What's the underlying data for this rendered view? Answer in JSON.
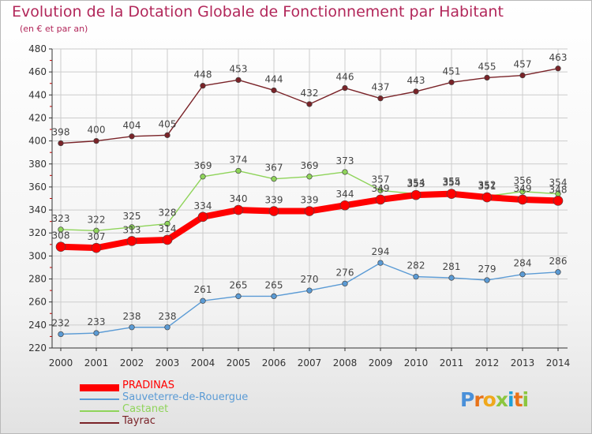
{
  "header": {
    "title": "Evolution de la Dotation Globale de Fonctionnement par Habitant",
    "subtitle": "(en € et par an)"
  },
  "colors": {
    "title": "#b2275a",
    "axis": "#333333",
    "grid": "#cccccc",
    "tick_minor": "#cc0000"
  },
  "chart_data": {
    "type": "line",
    "title": "Evolution de la Dotation Globale de Fonctionnement par Habitant",
    "subtitle": "(en € et par an)",
    "xlabel": "",
    "ylabel": "",
    "x": [
      2000,
      2001,
      2002,
      2003,
      2004,
      2005,
      2006,
      2007,
      2008,
      2009,
      2010,
      2011,
      2012,
      2013,
      2014
    ],
    "ylim": [
      220,
      480
    ],
    "yticks": [
      220,
      240,
      260,
      280,
      300,
      320,
      340,
      360,
      380,
      400,
      420,
      440,
      460,
      480
    ],
    "grid": true,
    "legend_position": "bottom-left",
    "series": [
      {
        "name": "PRADINAS",
        "color": "#ff0000",
        "values": [
          308,
          307,
          313,
          314,
          334,
          340,
          339,
          339,
          344,
          349,
          353,
          354,
          351,
          349,
          348
        ],
        "labels": [
          "308",
          "307",
          "313",
          "314",
          "334",
          "340",
          "339",
          "339",
          "344",
          "349",
          "353",
          "354",
          "351",
          "349",
          "348"
        ],
        "thick": true
      },
      {
        "name": "Sauveterre-de-Rouergue",
        "color": "#5b9bd5",
        "values": [
          232,
          233,
          238,
          238,
          261,
          265,
          265,
          270,
          276,
          294,
          282,
          281,
          279,
          284,
          286
        ],
        "labels": [
          "232",
          "233",
          "238",
          "238",
          "261",
          "265",
          "265",
          "270",
          "276",
          "294",
          "282",
          "281",
          "279",
          "284",
          "286"
        ]
      },
      {
        "name": "Castanet",
        "color": "#8fd45a",
        "values": [
          323,
          322,
          325,
          328,
          369,
          374,
          367,
          369,
          373,
          357,
          354,
          355,
          352,
          356,
          354
        ],
        "labels": [
          "323",
          "322",
          "325",
          "328",
          "369",
          "374",
          "367",
          "369",
          "373",
          "357",
          "354",
          "355",
          "352",
          "356",
          "354"
        ]
      },
      {
        "name": "Tayrac",
        "color": "#7a2328",
        "values": [
          398,
          400,
          404,
          405,
          448,
          453,
          444,
          432,
          446,
          437,
          443,
          451,
          455,
          457,
          463
        ],
        "labels": [
          "398",
          "400",
          "404",
          "405",
          "448",
          "453",
          "444",
          "432",
          "446",
          "437",
          "443",
          "451",
          "455",
          "457",
          "463"
        ]
      }
    ]
  },
  "legend": {
    "items": [
      {
        "label": "PRADINAS",
        "color": "#ff0000"
      },
      {
        "label": "Sauveterre-de-Rouergue",
        "color": "#5b9bd5"
      },
      {
        "label": "Castanet",
        "color": "#8fd45a"
      },
      {
        "label": "Tayrac",
        "color": "#7a2328"
      }
    ]
  },
  "logo": {
    "text": "Proxiti",
    "letter_colors": [
      "#4a90d9",
      "#e8731a",
      "#f0a81c",
      "#8cc63f",
      "#1fa0d8",
      "#e8731a",
      "#8cc63f"
    ]
  }
}
